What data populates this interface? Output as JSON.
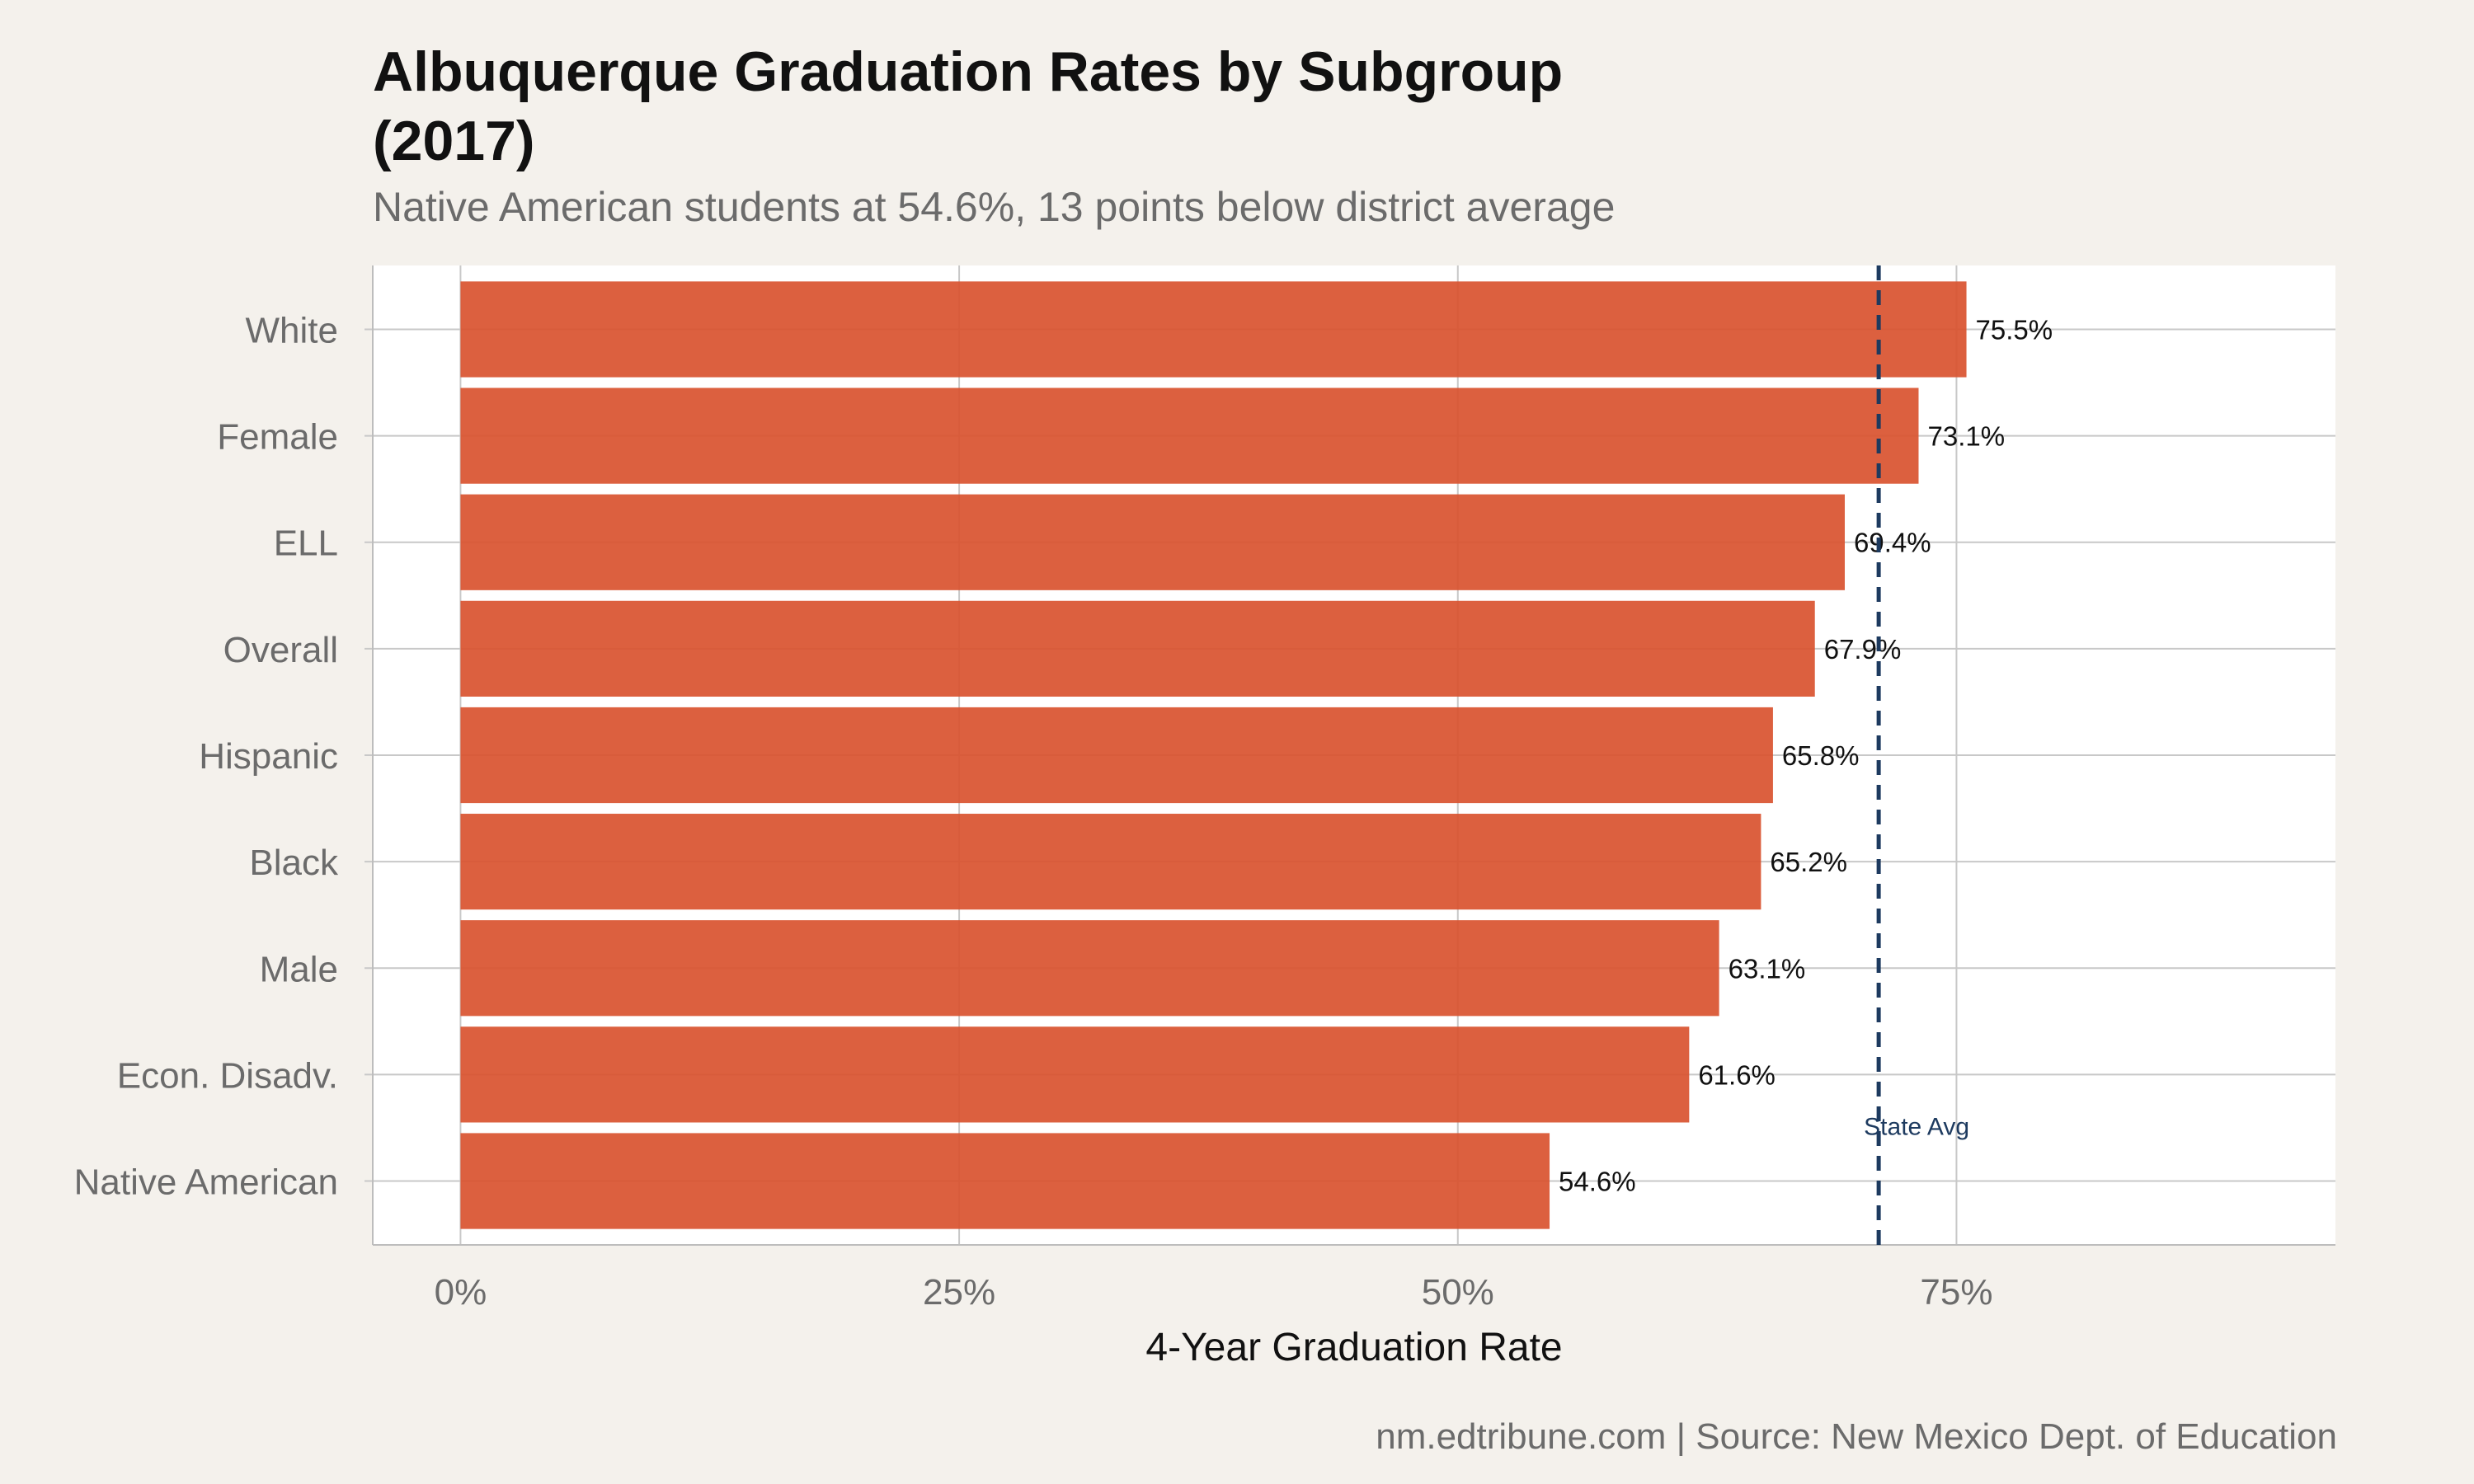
{
  "header": {
    "title": "Albuquerque Graduation Rates by Subgroup (2017)",
    "subtitle": "Native American students at 54.6%, 13 points below district average"
  },
  "caption": "nm.edtribune.com | Source: New Mexico Dept. of Education",
  "colors": {
    "bar": "#d9532f",
    "reference_line": "#1d3a5f",
    "panel": "#ffffff",
    "background": "#f4f1ec",
    "grid": "#c8c8c8"
  },
  "chart_data": {
    "type": "bar",
    "orientation": "horizontal",
    "categories": [
      "White",
      "Female",
      "ELL",
      "Overall",
      "Hispanic",
      "Black",
      "Male",
      "Econ. Disadv.",
      "Native American"
    ],
    "values": [
      75.5,
      73.1,
      69.4,
      67.9,
      65.8,
      65.2,
      63.1,
      61.6,
      54.6
    ],
    "value_labels": [
      "75.5%",
      "73.1%",
      "69.4%",
      "67.9%",
      "65.8%",
      "65.2%",
      "63.1%",
      "61.6%",
      "54.6%"
    ],
    "xlabel": "4-Year Graduation Rate",
    "ylabel": "",
    "xlim": [
      -4.4,
      94
    ],
    "x_ticks": [
      0,
      25,
      50,
      75
    ],
    "x_tick_labels": [
      "0%",
      "25%",
      "50%",
      "75%"
    ],
    "reference_line": {
      "value": 71.1,
      "label": "State Avg",
      "style": "dashed"
    },
    "grid": true,
    "legend": "none"
  }
}
